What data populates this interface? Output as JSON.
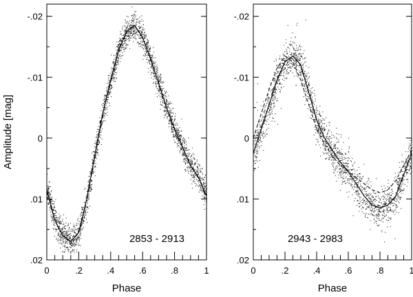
{
  "chart_data": [
    {
      "type": "scatter",
      "annotation": "2853 - 2913",
      "xlabel": "Phase",
      "ylabel": "Amplitude [mag]",
      "xlim": [
        0,
        1
      ],
      "ylim": [
        0.02,
        -0.022
      ],
      "y_inverted": true,
      "x_tick_values": [
        0,
        0.2,
        0.4,
        0.6,
        0.8,
        1.0
      ],
      "x_tick_labels": [
        "0",
        ".2",
        ".4",
        ".6",
        ".8",
        "1"
      ],
      "y_tick_values": [
        -0.02,
        -0.01,
        0,
        0.01,
        0.02
      ],
      "y_tick_labels": [
        "-.02",
        "-.01",
        "0",
        ".01",
        ".02"
      ],
      "series": [
        {
          "style": "fit-curve",
          "x": [
            0.0,
            0.05,
            0.1,
            0.15,
            0.2,
            0.25,
            0.3,
            0.35,
            0.4,
            0.45,
            0.5,
            0.55,
            0.6,
            0.65,
            0.7,
            0.75,
            0.8,
            0.85,
            0.9,
            0.95,
            1.0
          ],
          "y": [
            0.0085,
            0.0135,
            0.016,
            0.017,
            0.0155,
            0.01,
            0.003,
            -0.004,
            -0.0095,
            -0.0145,
            -0.0175,
            -0.0185,
            -0.0165,
            -0.013,
            -0.009,
            -0.005,
            -0.0015,
            0.0015,
            0.0045,
            0.0065,
            0.0095
          ]
        },
        {
          "style": "scatter-points",
          "scatter_sigma": 0.0012,
          "point_count": 2600
        }
      ]
    },
    {
      "type": "scatter",
      "annotation": "2943 - 2983",
      "xlabel": "Phase",
      "ylabel": "",
      "xlim": [
        0,
        1
      ],
      "ylim": [
        0.02,
        -0.022
      ],
      "y_inverted": true,
      "x_tick_values": [
        0,
        0.2,
        0.4,
        0.6,
        0.8,
        1.0
      ],
      "x_tick_labels": [
        "0",
        ".2",
        ".4",
        ".6",
        ".8",
        "1"
      ],
      "y_tick_values": [
        -0.02,
        -0.01,
        0,
        0.01,
        0.02
      ],
      "y_tick_labels": [
        "-.02",
        "-.01",
        "0",
        ".01",
        ".02"
      ],
      "series": [
        {
          "style": "fit-curve",
          "x": [
            0.0,
            0.05,
            0.1,
            0.15,
            0.2,
            0.25,
            0.3,
            0.35,
            0.4,
            0.45,
            0.5,
            0.55,
            0.6,
            0.65,
            0.7,
            0.75,
            0.8,
            0.85,
            0.9,
            0.95,
            1.0
          ],
          "y": [
            0.0025,
            -0.0015,
            -0.0055,
            -0.0095,
            -0.0125,
            -0.0135,
            -0.012,
            -0.0075,
            -0.003,
            0.0,
            0.002,
            0.004,
            0.0055,
            0.0075,
            0.0095,
            0.011,
            0.0115,
            0.011,
            0.0095,
            0.006,
            0.0025
          ]
        },
        {
          "style": "fit-curve-dashed",
          "x": [
            0.0,
            0.05,
            0.1,
            0.15,
            0.2,
            0.25,
            0.3,
            0.35,
            0.4,
            0.45,
            0.5,
            0.55,
            0.6,
            0.65,
            0.7,
            0.75,
            0.8,
            0.85,
            0.9,
            0.95,
            1.0
          ],
          "y": [
            0.0,
            -0.004,
            -0.008,
            -0.0115,
            -0.0135,
            -0.0125,
            -0.0095,
            -0.0055,
            -0.0015,
            0.001,
            0.003,
            0.0045,
            0.0055,
            0.0065,
            0.0075,
            0.0085,
            0.009,
            0.0085,
            0.007,
            0.0045,
            0.002
          ]
        },
        {
          "style": "scatter-points",
          "scatter_sigma": 0.0016,
          "point_count": 2000
        }
      ]
    }
  ]
}
